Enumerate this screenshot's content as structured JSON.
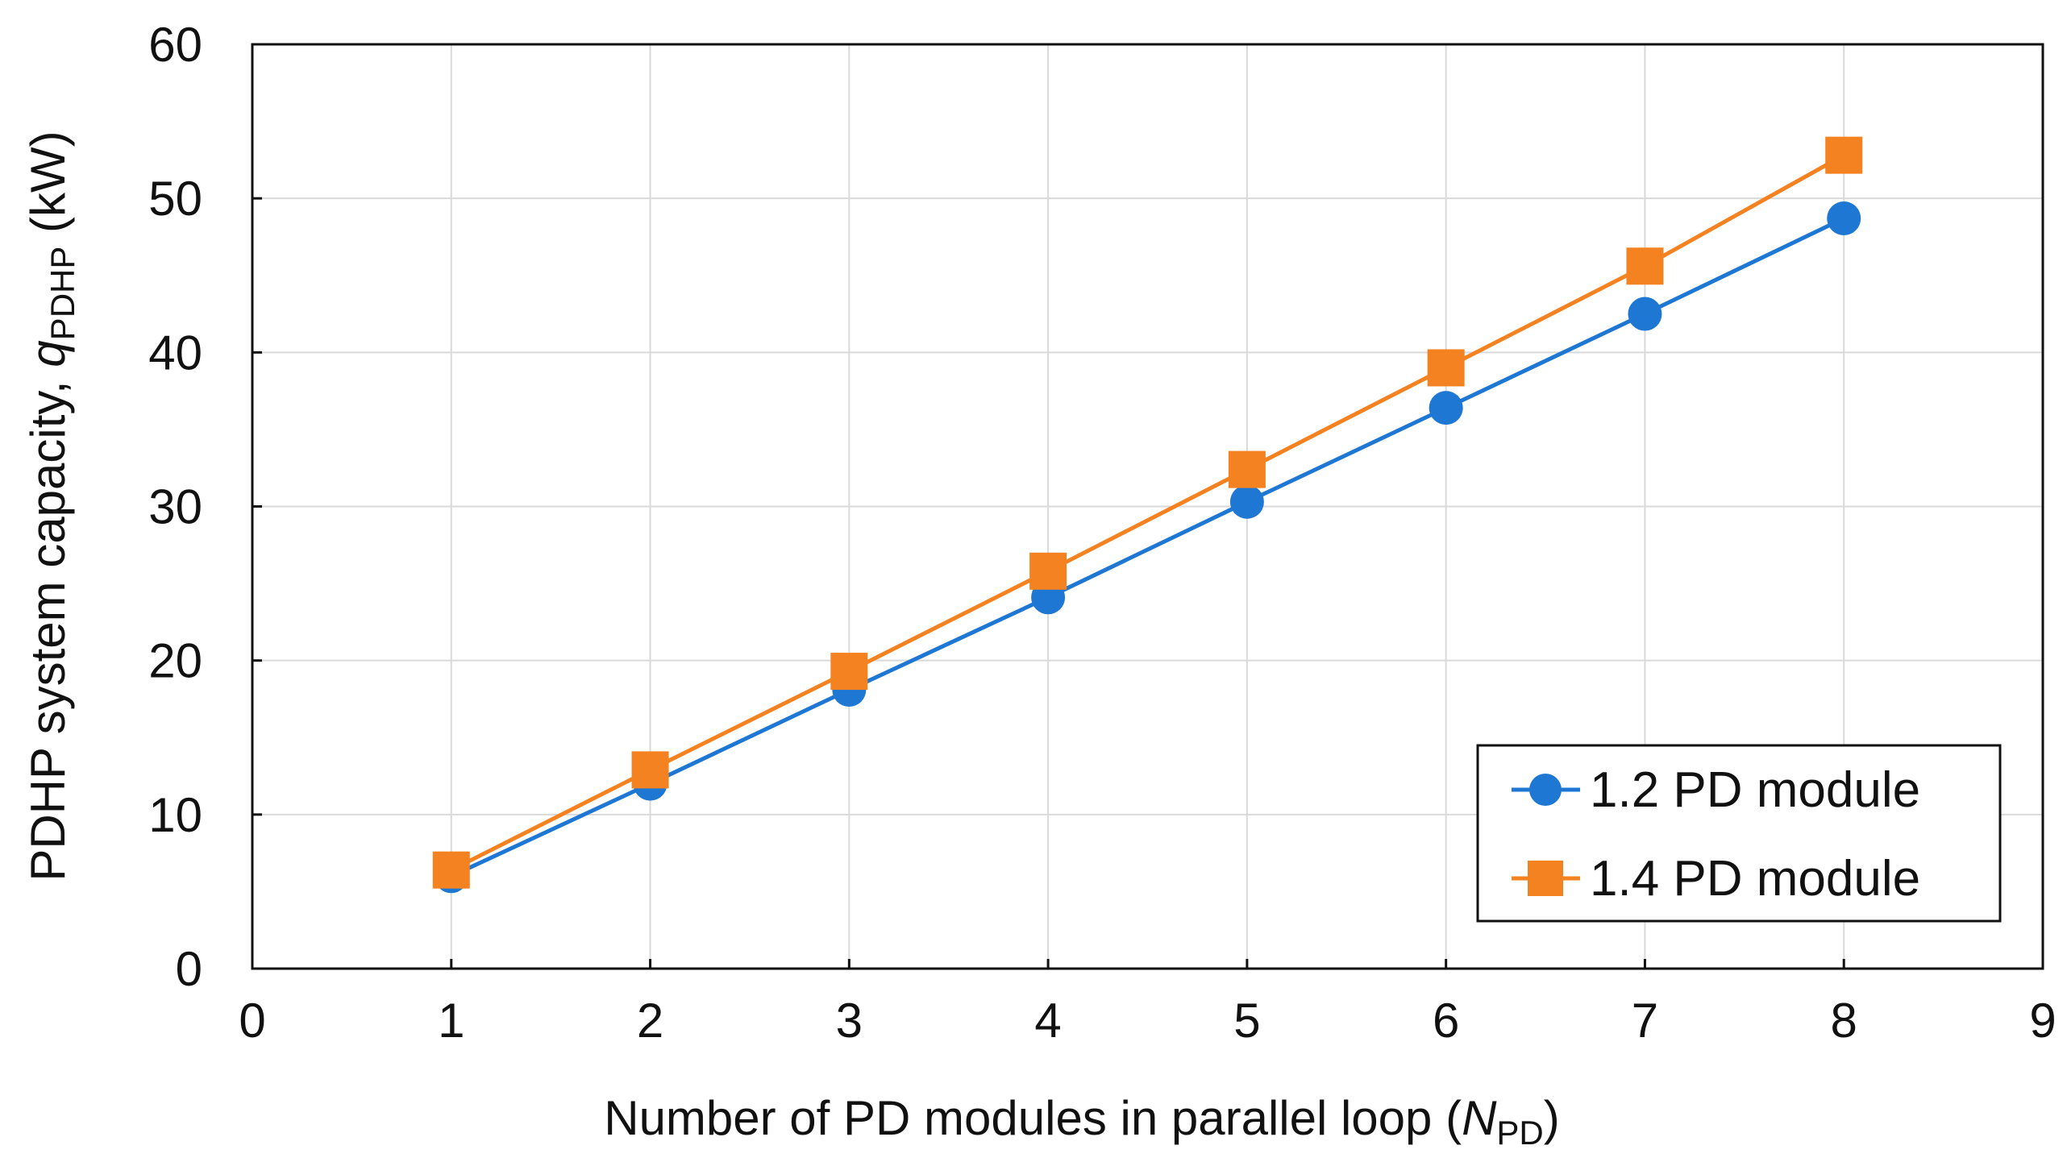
{
  "chart_data": {
    "type": "line",
    "title": "",
    "xlabel": {
      "prefix": "Number of PD modules in parallel loop (",
      "symbol": "N",
      "subscript": "PD",
      "suffix": ")"
    },
    "ylabel": {
      "prefix": "PDHP system capacity, ",
      "symbol": "q",
      "subscript": "PDHP",
      "suffix": " (kW)"
    },
    "xlim": [
      0,
      9
    ],
    "ylim": [
      0,
      60
    ],
    "xticks": [
      0,
      1,
      2,
      3,
      4,
      5,
      6,
      7,
      8,
      9
    ],
    "yticks": [
      0,
      10,
      20,
      30,
      40,
      50,
      60
    ],
    "grid": true,
    "legend_position": "bottom-right",
    "x": [
      1,
      2,
      3,
      4,
      5,
      6,
      7,
      8
    ],
    "series": [
      {
        "name": "1.2 PD module",
        "marker": "circle",
        "color": "#1f77d4",
        "values": [
          6.0,
          12.0,
          18.1,
          24.1,
          30.3,
          36.4,
          42.5,
          48.7
        ]
      },
      {
        "name": "1.4 PD module",
        "marker": "square",
        "color": "#f58220",
        "values": [
          6.4,
          12.9,
          19.3,
          25.8,
          32.4,
          39.0,
          45.6,
          52.8
        ]
      }
    ]
  }
}
